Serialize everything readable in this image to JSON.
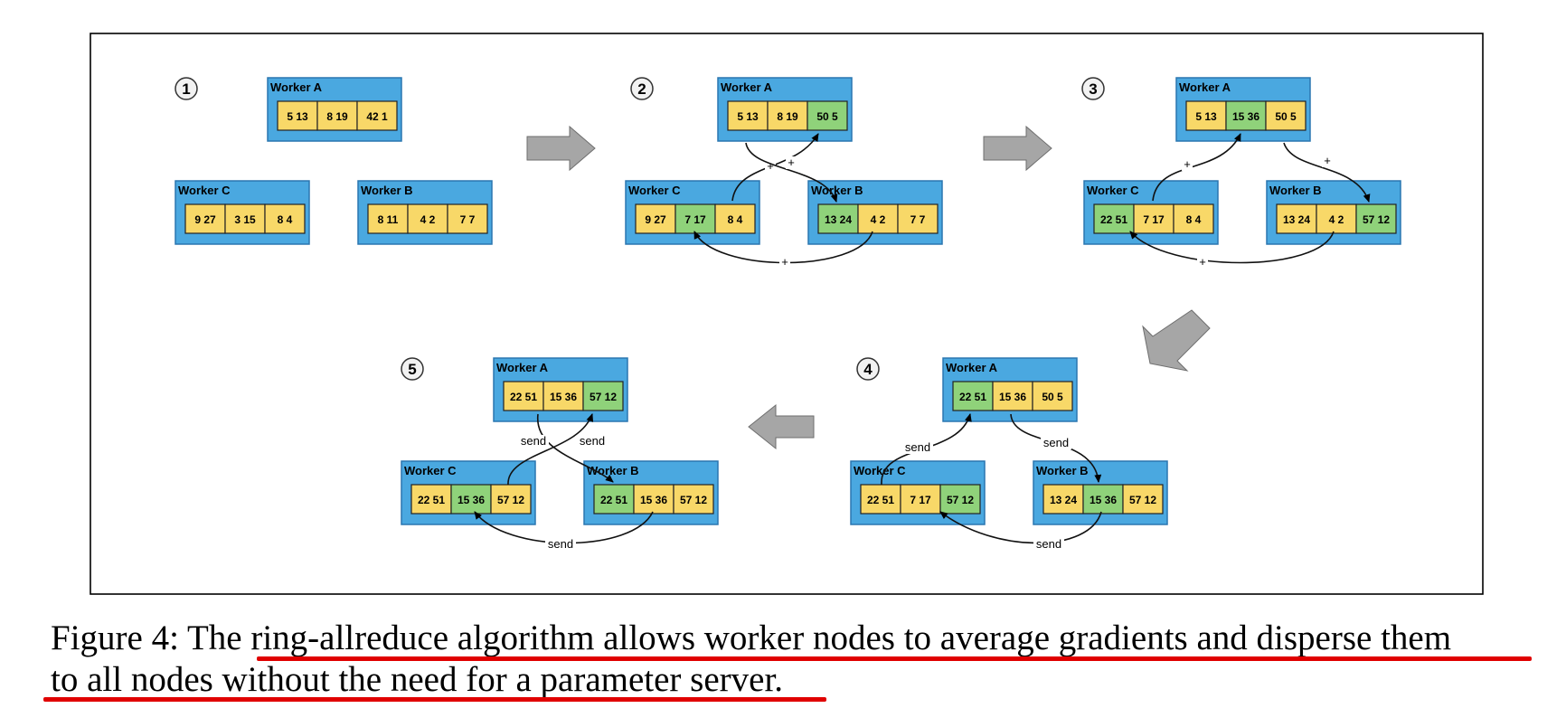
{
  "figure": {
    "colors": {
      "box": "#4aa8e0",
      "box_dark": "#2a76b0",
      "yellow": "#f8d868",
      "green": "#8fd27a",
      "arrow": "#a6a6a6",
      "underline": "#e00000"
    },
    "stages": [
      {
        "label": "1",
        "workers": [
          {
            "name": "Worker A",
            "cells": [
              {
                "a": "5",
                "b": "13",
                "color": "yellow"
              },
              {
                "a": "8",
                "b": "19",
                "color": "yellow"
              },
              {
                "a": "42",
                "b": "1",
                "color": "yellow"
              }
            ]
          },
          {
            "name": "Worker C",
            "cells": [
              {
                "a": "9",
                "b": "27",
                "color": "yellow"
              },
              {
                "a": "3",
                "b": "15",
                "color": "yellow"
              },
              {
                "a": "8",
                "b": "4",
                "color": "yellow"
              }
            ]
          },
          {
            "name": "Worker B",
            "cells": [
              {
                "a": "8",
                "b": "11",
                "color": "yellow"
              },
              {
                "a": "4",
                "b": "2",
                "color": "yellow"
              },
              {
                "a": "7",
                "b": "7",
                "color": "yellow"
              }
            ]
          }
        ],
        "edges": []
      },
      {
        "label": "2",
        "workers": [
          {
            "name": "Worker A",
            "cells": [
              {
                "a": "5",
                "b": "13",
                "color": "yellow"
              },
              {
                "a": "8",
                "b": "19",
                "color": "yellow"
              },
              {
                "a": "50",
                "b": "5",
                "color": "green"
              }
            ]
          },
          {
            "name": "Worker C",
            "cells": [
              {
                "a": "9",
                "b": "27",
                "color": "yellow"
              },
              {
                "a": "7",
                "b": "17",
                "color": "green"
              },
              {
                "a": "8",
                "b": "4",
                "color": "yellow"
              }
            ]
          },
          {
            "name": "Worker B",
            "cells": [
              {
                "a": "13",
                "b": "24",
                "color": "green"
              },
              {
                "a": "4",
                "b": "2",
                "color": "yellow"
              },
              {
                "a": "7",
                "b": "7",
                "color": "yellow"
              }
            ]
          }
        ],
        "edges": [
          "+",
          "+",
          "+"
        ]
      },
      {
        "label": "3",
        "workers": [
          {
            "name": "Worker A",
            "cells": [
              {
                "a": "5",
                "b": "13",
                "color": "yellow"
              },
              {
                "a": "15",
                "b": "36",
                "color": "green"
              },
              {
                "a": "50",
                "b": "5",
                "color": "yellow"
              }
            ]
          },
          {
            "name": "Worker C",
            "cells": [
              {
                "a": "22",
                "b": "51",
                "color": "green"
              },
              {
                "a": "7",
                "b": "17",
                "color": "yellow"
              },
              {
                "a": "8",
                "b": "4",
                "color": "yellow"
              }
            ]
          },
          {
            "name": "Worker B",
            "cells": [
              {
                "a": "13",
                "b": "24",
                "color": "yellow"
              },
              {
                "a": "4",
                "b": "2",
                "color": "yellow"
              },
              {
                "a": "57",
                "b": "12",
                "color": "green"
              }
            ]
          }
        ],
        "edges": [
          "+",
          "+",
          "+"
        ]
      },
      {
        "label": "4",
        "workers": [
          {
            "name": "Worker A",
            "cells": [
              {
                "a": "22",
                "b": "51",
                "color": "green"
              },
              {
                "a": "15",
                "b": "36",
                "color": "yellow"
              },
              {
                "a": "50",
                "b": "5",
                "color": "yellow"
              }
            ]
          },
          {
            "name": "Worker C",
            "cells": [
              {
                "a": "22",
                "b": "51",
                "color": "yellow"
              },
              {
                "a": "7",
                "b": "17",
                "color": "yellow"
              },
              {
                "a": "57",
                "b": "12",
                "color": "green"
              }
            ]
          },
          {
            "name": "Worker B",
            "cells": [
              {
                "a": "13",
                "b": "24",
                "color": "yellow"
              },
              {
                "a": "15",
                "b": "36",
                "color": "green"
              },
              {
                "a": "57",
                "b": "12",
                "color": "yellow"
              }
            ]
          }
        ],
        "edges": [
          "send",
          "send",
          "send"
        ]
      },
      {
        "label": "5",
        "workers": [
          {
            "name": "Worker A",
            "cells": [
              {
                "a": "22",
                "b": "51",
                "color": "yellow"
              },
              {
                "a": "15",
                "b": "36",
                "color": "yellow"
              },
              {
                "a": "57",
                "b": "12",
                "color": "green"
              }
            ]
          },
          {
            "name": "Worker C",
            "cells": [
              {
                "a": "22",
                "b": "51",
                "color": "yellow"
              },
              {
                "a": "15",
                "b": "36",
                "color": "green"
              },
              {
                "a": "57",
                "b": "12",
                "color": "yellow"
              }
            ]
          },
          {
            "name": "Worker B",
            "cells": [
              {
                "a": "22",
                "b": "51",
                "color": "green"
              },
              {
                "a": "15",
                "b": "36",
                "color": "yellow"
              },
              {
                "a": "57",
                "b": "12",
                "color": "yellow"
              }
            ]
          }
        ],
        "edges": [
          "send",
          "send",
          "send"
        ]
      }
    ]
  },
  "caption": {
    "line1": "Figure 4: The ring-allreduce algorithm allows worker nodes to average gradients and disperse them",
    "line2": "to all nodes without the need for a parameter server."
  }
}
